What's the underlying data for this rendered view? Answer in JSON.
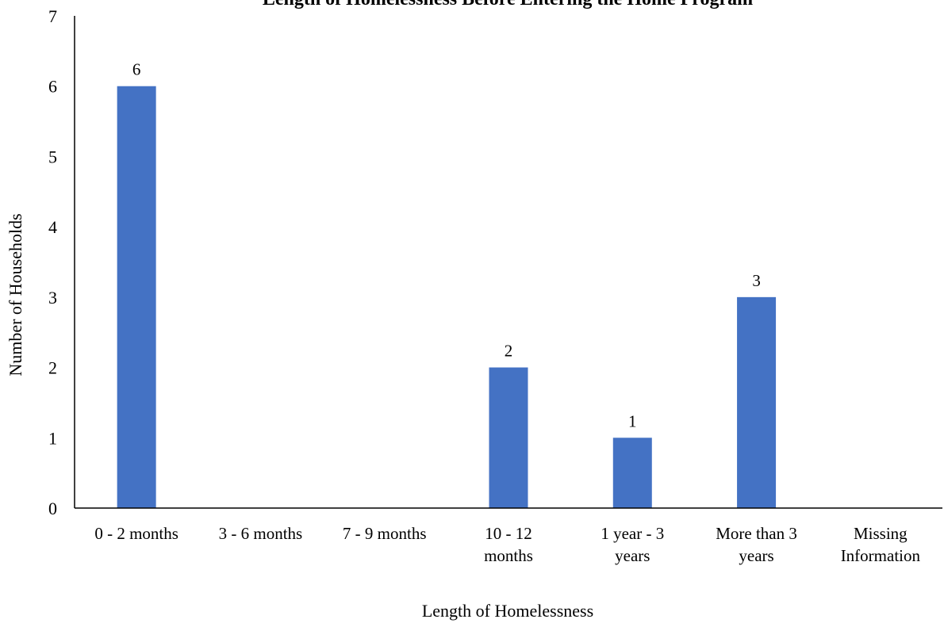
{
  "chart_data": {
    "type": "bar",
    "title": "Length of Homelessness Before Entering the Home Program",
    "xlabel": "Length of Homelessness",
    "ylabel": "Number of Households",
    "categories": [
      [
        "0 - 2 months"
      ],
      [
        "3 - 6 months"
      ],
      [
        "7 - 9 months"
      ],
      [
        "10 - 12",
        "months"
      ],
      [
        "1 year - 3",
        "years"
      ],
      [
        "More than 3",
        "years"
      ],
      [
        "Missing",
        "Information"
      ]
    ],
    "values": [
      6,
      0,
      0,
      2,
      1,
      3,
      0
    ],
    "data_labels": [
      "6",
      "",
      "",
      "2",
      "1",
      "3",
      ""
    ],
    "ylim": [
      0,
      7
    ],
    "yticks": [
      0,
      1,
      2,
      3,
      4,
      5,
      6,
      7
    ],
    "grid": false,
    "bar_color": "#4472C4",
    "axis_color": "#000000"
  }
}
